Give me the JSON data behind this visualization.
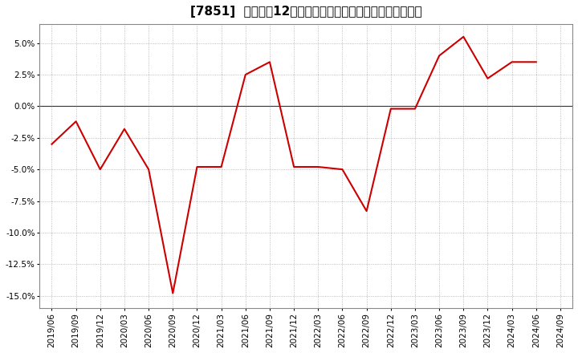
{
  "title": "[7851]  売上高の12か月移動合計の対前年同期増減率の推移",
  "x_labels": [
    "2019/06",
    "2019/09",
    "2019/12",
    "2020/03",
    "2020/06",
    "2020/09",
    "2020/12",
    "2021/03",
    "2021/06",
    "2021/09",
    "2021/12",
    "2022/03",
    "2022/06",
    "2022/09",
    "2022/12",
    "2023/03",
    "2023/06",
    "2023/09",
    "2023/12",
    "2024/03",
    "2024/06",
    "2024/09"
  ],
  "y_values": [
    -0.03,
    -0.012,
    -0.05,
    -0.018,
    -0.05,
    -0.148,
    -0.048,
    -0.048,
    0.025,
    0.035,
    -0.048,
    -0.048,
    -0.05,
    -0.083,
    -0.002,
    -0.002,
    0.04,
    0.055,
    0.022,
    0.035,
    0.035,
    null
  ],
  "line_color": "#cc0000",
  "background_color": "#ffffff",
  "grid_color": "#aaaaaa",
  "zero_line_color": "#333333",
  "ylim": [
    -0.16,
    0.065
  ],
  "yticks": [
    -0.15,
    -0.125,
    -0.1,
    -0.075,
    -0.05,
    -0.025,
    0.0,
    0.025,
    0.05
  ],
  "title_fontsize": 11,
  "tick_fontsize": 7.5
}
